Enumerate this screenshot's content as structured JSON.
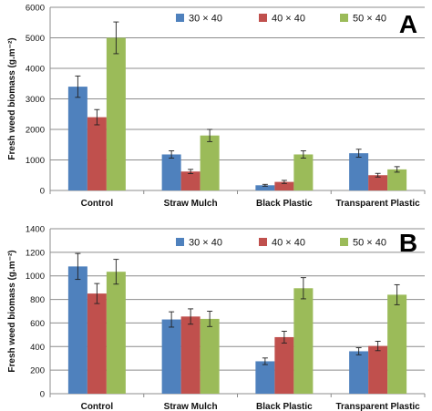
{
  "colors": {
    "30x40": "#4F81BD",
    "40x40": "#C0504D",
    "50x40": "#9BBB59"
  },
  "chart_data": [
    {
      "type": "bar",
      "panel_label": "A",
      "ylabel": "Fresh weed biomass (g.m⁻²)",
      "ylim": [
        0,
        6000
      ],
      "yticks": [
        0,
        1000,
        2000,
        3000,
        4000,
        5000,
        6000
      ],
      "categories": [
        "Control",
        "Straw Mulch",
        "Black Plastic",
        "Transparent Plastic"
      ],
      "series": [
        {
          "name": "30 × 40",
          "values": [
            3400,
            1180,
            170,
            1220
          ],
          "errors": [
            350,
            120,
            30,
            130
          ]
        },
        {
          "name": "40 × 40",
          "values": [
            2400,
            620,
            280,
            500
          ],
          "errors": [
            250,
            70,
            50,
            60
          ]
        },
        {
          "name": "50 × 40",
          "values": [
            5000,
            1800,
            1180,
            690
          ],
          "errors": [
            520,
            200,
            120,
            90
          ]
        }
      ],
      "legend_position": "top-right"
    },
    {
      "type": "bar",
      "panel_label": "B",
      "ylabel": "Fresh weed biomass (g.m⁻²)",
      "ylim": [
        0,
        1400
      ],
      "yticks": [
        0,
        200,
        400,
        600,
        800,
        1000,
        1200,
        1400
      ],
      "categories": [
        "Control",
        "Straw Mulch",
        "Black Plastic",
        "Transparent Plastic"
      ],
      "series": [
        {
          "name": "30 × 40",
          "values": [
            1080,
            630,
            275,
            360
          ],
          "errors": [
            110,
            65,
            28,
            30
          ]
        },
        {
          "name": "40 × 40",
          "values": [
            850,
            655,
            480,
            405
          ],
          "errors": [
            85,
            65,
            50,
            40
          ]
        },
        {
          "name": "50 × 40",
          "values": [
            1035,
            635,
            895,
            840
          ],
          "errors": [
            105,
            65,
            90,
            85
          ]
        }
      ],
      "legend_position": "top-right"
    }
  ]
}
